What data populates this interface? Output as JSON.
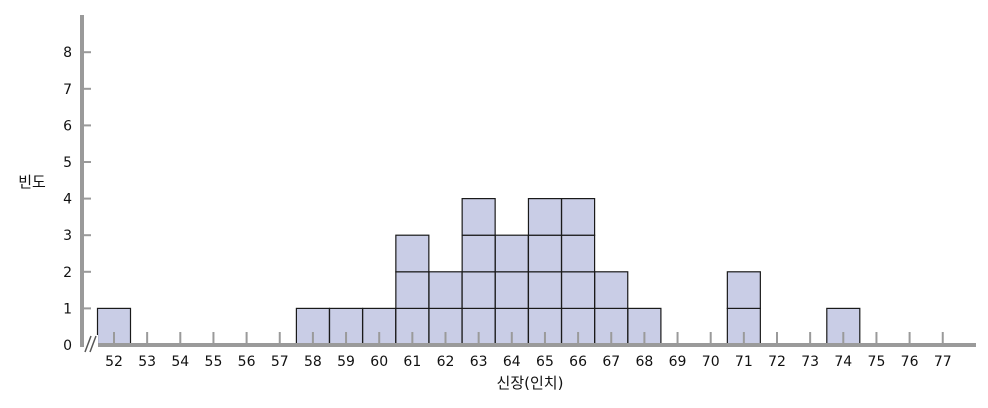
{
  "chart_data": {
    "type": "bar",
    "subtype": "stacked-unit-histogram",
    "title": "",
    "xlabel": "신장(인치)",
    "ylabel": "빈도",
    "categories": [
      "52",
      "53",
      "54",
      "55",
      "56",
      "57",
      "58",
      "59",
      "60",
      "61",
      "62",
      "63",
      "64",
      "65",
      "66",
      "67",
      "68",
      "69",
      "70",
      "71",
      "72",
      "73",
      "74",
      "75",
      "76",
      "77"
    ],
    "values": [
      1,
      0,
      0,
      0,
      0,
      0,
      1,
      1,
      1,
      3,
      2,
      4,
      3,
      4,
      4,
      2,
      1,
      0,
      0,
      2,
      0,
      0,
      1,
      0,
      0,
      0
    ],
    "yticks": [
      "0",
      "1",
      "2",
      "3",
      "4",
      "5",
      "6",
      "7",
      "8"
    ],
    "ylim": [
      0,
      9
    ],
    "axis_break": true,
    "grid": false,
    "colors": {
      "bar_fill": "#c9cde6",
      "bar_stroke": "#1a1a1a",
      "axis": "#9a9a9a"
    }
  }
}
